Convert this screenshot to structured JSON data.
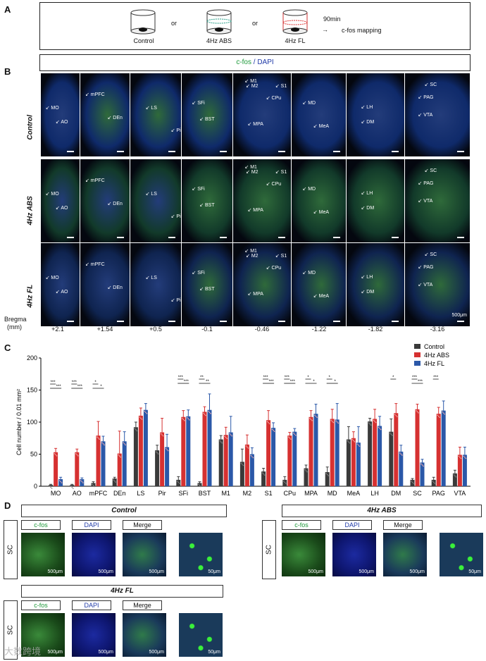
{
  "panelA": {
    "letter": "A",
    "groups": [
      "Control",
      "4Hz ABS",
      "4Hz FL"
    ],
    "or1": "or",
    "or2": "or",
    "duration": "90min",
    "arrow_text": "c-fos mapping"
  },
  "panelB": {
    "letter": "B",
    "header_cfos": "c-fos",
    "header_dapi": " / DAPI",
    "rows": [
      "Control",
      "4Hz ABS",
      "4Hz FL"
    ],
    "columns": [
      {
        "regions": [
          "MO",
          "AO"
        ],
        "bregma": "+2.1"
      },
      {
        "regions": [
          "mPFC",
          "DEn"
        ],
        "bregma": "+1.54"
      },
      {
        "regions": [
          "LS",
          "Pir"
        ],
        "bregma": "+0.5"
      },
      {
        "regions": [
          "SFi",
          "BST"
        ],
        "bregma": "-0.1"
      },
      {
        "regions": [
          "M1",
          "M2",
          "S1",
          "CPu",
          "MPA"
        ],
        "bregma": "-0.46"
      },
      {
        "regions": [
          "MD",
          "MeA"
        ],
        "bregma": "-1.22"
      },
      {
        "regions": [
          "LH",
          "DM"
        ],
        "bregma": "-1.82"
      },
      {
        "regions": [
          "SC",
          "PAG",
          "VTA"
        ],
        "bregma": "-3.16"
      }
    ],
    "bregma_label_1": "Bregma",
    "bregma_label_2": "(mm)",
    "scale_label": "500μm"
  },
  "panelC": {
    "letter": "C"
  },
  "chart_data": {
    "type": "bar",
    "ylabel": "Cell number / 0.01 mm²",
    "xlabel": "",
    "title": "",
    "ylim": [
      0,
      200
    ],
    "yticks": [
      0,
      50,
      100,
      150,
      200
    ],
    "legend_position": "top-right",
    "categories": [
      "MO",
      "AO",
      "mPFC",
      "DEn",
      "LS",
      "Pir",
      "SFi",
      "BST",
      "M1",
      "M2",
      "S1",
      "CPu",
      "MPA",
      "MD",
      "MeA",
      "LH",
      "DM",
      "SC",
      "PAG",
      "VTA"
    ],
    "series": [
      {
        "name": "Control",
        "color": "#3a3a3a",
        "values": [
          2,
          2,
          5,
          12,
          92,
          56,
          10,
          5,
          73,
          38,
          23,
          10,
          28,
          22,
          73,
          101,
          85,
          10,
          10,
          20
        ],
        "errors": [
          1,
          1,
          2,
          2,
          8,
          8,
          5,
          2,
          6,
          20,
          5,
          5,
          5,
          8,
          20,
          5,
          20,
          2,
          4,
          5
        ]
      },
      {
        "name": "4Hz ABS",
        "color": "#d63131",
        "values": [
          53,
          53,
          79,
          51,
          110,
          84,
          108,
          116,
          80,
          65,
          103,
          79,
          108,
          105,
          75,
          105,
          114,
          120,
          113,
          49
        ],
        "errors": [
          6,
          5,
          22,
          35,
          12,
          22,
          10,
          8,
          12,
          15,
          15,
          5,
          10,
          15,
          10,
          15,
          15,
          8,
          10,
          12
        ]
      },
      {
        "name": "4Hz FL",
        "color": "#2b58a8",
        "values": [
          11,
          11,
          70,
          70,
          119,
          61,
          109,
          119,
          84,
          50,
          91,
          85,
          113,
          104,
          68,
          94,
          54,
          37,
          118,
          49
        ],
        "errors": [
          3,
          2,
          8,
          15,
          10,
          20,
          10,
          25,
          25,
          10,
          8,
          5,
          15,
          25,
          25,
          15,
          10,
          5,
          15,
          12
        ]
      }
    ],
    "significance_label_1": "***",
    "significance_label_2": "**",
    "significance_label_3": "*"
  },
  "panelD": {
    "letter": "D",
    "titles": [
      "Control",
      "4Hz ABS",
      "4Hz FL"
    ],
    "region": "SC",
    "channels": [
      "c-fos",
      "DAPI",
      "Merge"
    ],
    "scale_large": "500μm",
    "scale_small": "50μm"
  },
  "watermark": "大数跨境"
}
